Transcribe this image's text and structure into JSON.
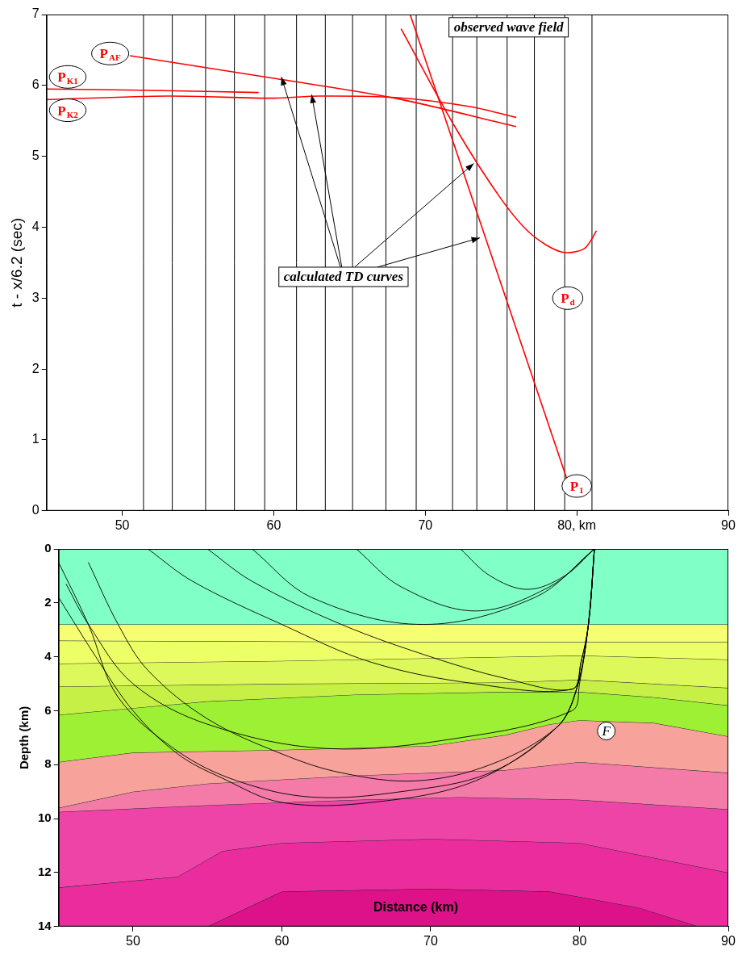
{
  "chart_data": [
    {
      "type": "line",
      "y_label": "t - x/6.2 (sec)",
      "xlim": [
        45,
        90
      ],
      "ylim": [
        0,
        7
      ],
      "xticks": [
        50,
        60,
        70,
        {
          "value": 80,
          "label": "80, km"
        },
        90
      ],
      "yticks": [
        0,
        1,
        2,
        3,
        4,
        5,
        6,
        7
      ],
      "grid": false,
      "traces": {
        "color": "#000000",
        "x": [
          51.4,
          53.3,
          55.5,
          57.4,
          59.4,
          61.5,
          63.4,
          65.2,
          67.4,
          69.4,
          71.8,
          73.4,
          75.4,
          77.2,
          79.2,
          81.0
        ]
      },
      "series": [
        {
          "name": "P",
          "subscript": "AF",
          "color": "#ff0000",
          "x": [
            50.5,
            60,
            68,
            76
          ],
          "values": [
            6.42,
            6.1,
            5.82,
            5.42
          ],
          "label_at": [
            49.2,
            6.45
          ]
        },
        {
          "name": "P",
          "subscript": "K1",
          "color": "#ff0000",
          "x": [
            45,
            52,
            59
          ],
          "values": [
            5.95,
            5.93,
            5.9
          ],
          "label_at": [
            46.4,
            6.12
          ]
        },
        {
          "name": "P",
          "subscript": "K2",
          "color": "#ff0000",
          "x": [
            45,
            53,
            60,
            63,
            68,
            73,
            76
          ],
          "values": [
            5.8,
            5.85,
            5.82,
            5.85,
            5.83,
            5.7,
            5.55
          ],
          "label_at": [
            46.4,
            5.65
          ]
        },
        {
          "name": "P",
          "subscript": "1",
          "color": "#ff0000",
          "x": [
            69,
            79.5
          ],
          "values": [
            7.0,
            0.35
          ],
          "label_at": [
            80.0,
            0.35
          ]
        },
        {
          "name": "P",
          "subscript": "d",
          "color": "#ff0000",
          "x": [
            68.4,
            72,
            75,
            77,
            79,
            80.5,
            81.3
          ],
          "values": [
            6.8,
            5.4,
            4.4,
            3.9,
            3.65,
            3.7,
            3.95
          ],
          "label_at": [
            79.4,
            3.0
          ]
        }
      ],
      "annotations": [
        {
          "text": "observed wave field",
          "x": 75.5,
          "y": 6.82,
          "marker": "box"
        },
        {
          "text": "calculated TD curves",
          "x": 64.6,
          "y": 3.3,
          "marker": "box",
          "arrows_to": [
            [
              62.5,
              5.87
            ],
            [
              60.5,
              6.12
            ],
            [
              73.2,
              4.9
            ],
            [
              73.6,
              3.85
            ]
          ]
        }
      ]
    },
    {
      "type": "line",
      "y_label": "Depth (km)",
      "xlim": [
        45,
        90
      ],
      "ylim": [
        14,
        0
      ],
      "xticks": [
        50,
        60,
        70,
        80,
        90
      ],
      "yticks": [
        0,
        2,
        4,
        6,
        8,
        10,
        12,
        14
      ],
      "grid": false,
      "interfaces": [
        [
          [
            45,
            2.8
          ],
          [
            90,
            2.8
          ]
        ],
        [
          [
            45,
            3.4
          ],
          [
            70,
            3.45
          ],
          [
            90,
            3.45
          ]
        ],
        [
          [
            45,
            4.25
          ],
          [
            60,
            4.15
          ],
          [
            75,
            4.0
          ],
          [
            80,
            3.95
          ],
          [
            90,
            4.1
          ]
        ],
        [
          [
            45,
            5.1
          ],
          [
            60,
            5.0
          ],
          [
            75,
            4.95
          ],
          [
            80,
            4.85
          ],
          [
            90,
            5.15
          ]
        ],
        [
          [
            45,
            6.15
          ],
          [
            50,
            5.9
          ],
          [
            55,
            5.65
          ],
          [
            65,
            5.4
          ],
          [
            75,
            5.3
          ],
          [
            80,
            5.3
          ],
          [
            85,
            5.5
          ],
          [
            90,
            5.8
          ]
        ],
        [
          [
            45,
            7.9
          ],
          [
            50,
            7.55
          ],
          [
            60,
            7.45
          ],
          [
            70,
            7.3
          ],
          [
            75,
            6.9
          ],
          [
            78,
            6.5
          ],
          [
            80,
            6.35
          ],
          [
            85,
            6.45
          ],
          [
            90,
            6.95
          ]
        ],
        [
          [
            45,
            9.6
          ],
          [
            50,
            9.0
          ],
          [
            55,
            8.7
          ],
          [
            65,
            8.4
          ],
          [
            75,
            8.2
          ],
          [
            80,
            7.9
          ],
          [
            90,
            8.3
          ]
        ],
        [
          [
            45,
            9.75
          ],
          [
            55,
            9.5
          ],
          [
            65,
            9.3
          ],
          [
            72,
            9.2
          ],
          [
            80,
            9.3
          ],
          [
            90,
            9.65
          ]
        ],
        [
          [
            45,
            12.55
          ],
          [
            53,
            12.15
          ],
          [
            56,
            11.2
          ],
          [
            60,
            10.9
          ],
          [
            70,
            10.75
          ],
          [
            80,
            10.9
          ],
          [
            90,
            12.0
          ]
        ],
        [
          [
            45,
            14
          ],
          [
            55,
            14
          ],
          [
            60,
            12.7
          ],
          [
            70,
            12.6
          ],
          [
            78,
            12.7
          ],
          [
            84,
            13.3
          ],
          [
            88,
            14
          ],
          [
            90,
            14
          ]
        ]
      ],
      "layer_colors": [
        "#80ffc6",
        "#f6ff74",
        "#ecff66",
        "#dcf85a",
        "#c6f046",
        "#9ef034",
        "#f7a29a",
        "#f47aa8",
        "#ee44a8",
        "#ea2c9c",
        "#de1288"
      ],
      "rays": {
        "color": "#000000",
        "paths": [
          [
            [
              81,
              0
            ],
            [
              79,
              1.0
            ],
            [
              76.5,
              1.5
            ],
            [
              74,
              1.0
            ],
            [
              72,
              0
            ]
          ],
          [
            [
              81,
              0
            ],
            [
              78,
              1.4
            ],
            [
              73,
              2.3
            ],
            [
              68,
              1.4
            ],
            [
              65,
              0
            ]
          ],
          [
            [
              81,
              0
            ],
            [
              77,
              1.8
            ],
            [
              69.5,
              2.8
            ],
            [
              62,
              1.8
            ],
            [
              58,
              0
            ]
          ],
          [
            [
              81,
              0
            ],
            [
              80.6,
              2.8
            ],
            [
              80.1,
              4.2
            ],
            [
              79.5,
              5.2
            ],
            [
              75,
              4.8
            ],
            [
              70,
              4.0
            ],
            [
              64,
              2.8
            ],
            [
              58,
              1.2
            ],
            [
              55,
              0
            ]
          ],
          [
            [
              81,
              0
            ],
            [
              80.6,
              2.8
            ],
            [
              80.1,
              4.2
            ],
            [
              79.5,
              5.2
            ],
            [
              73,
              5.0
            ],
            [
              66,
              4.2
            ],
            [
              60,
              2.8
            ],
            [
              54,
              1.2
            ],
            [
              51,
              0
            ]
          ],
          [
            [
              81,
              0
            ],
            [
              80.6,
              2.8
            ],
            [
              80,
              5.0
            ],
            [
              79.5,
              6.0
            ],
            [
              72,
              7.0
            ],
            [
              63,
              7.4
            ],
            [
              55,
              6.5
            ],
            [
              50,
              5.0
            ],
            [
              47,
              2.8
            ],
            [
              45.5,
              1.3
            ]
          ],
          [
            [
              81,
              0
            ],
            [
              80.6,
              2.8
            ],
            [
              79.8,
              5.2
            ],
            [
              78.5,
              6.6
            ],
            [
              74,
              8.0
            ],
            [
              69,
              8.6
            ],
            [
              64,
              8.3
            ],
            [
              60,
              7.6
            ],
            [
              55,
              6.3
            ],
            [
              51,
              4.5
            ],
            [
              49,
              2.8
            ],
            [
              47,
              0.5
            ]
          ],
          [
            [
              81,
              0
            ],
            [
              80.6,
              2.8
            ],
            [
              79.8,
              5.2
            ],
            [
              78.5,
              6.6
            ],
            [
              74,
              8.3
            ],
            [
              68,
              9.0
            ],
            [
              62,
              9.2
            ],
            [
              57,
              8.6
            ],
            [
              53,
              7.5
            ],
            [
              49,
              5.5
            ],
            [
              47,
              2.8
            ],
            [
              45,
              0.5
            ]
          ],
          [
            [
              81,
              0
            ],
            [
              80.6,
              2.8
            ],
            [
              79.8,
              5.2
            ],
            [
              78.5,
              6.6
            ],
            [
              73,
              8.6
            ],
            [
              66,
              9.4
            ],
            [
              60,
              9.4
            ],
            [
              56,
              8.5
            ],
            [
              53,
              7.6
            ],
            [
              50,
              6.0
            ],
            [
              47.5,
              4.0
            ],
            [
              45,
              1.8
            ]
          ]
        ]
      },
      "annotations": [
        {
          "text": "F",
          "x": 81.8,
          "y": 6.75,
          "marker": "circle"
        },
        {
          "text": "Distance (km)",
          "x": 69,
          "y": 13.3
        }
      ]
    }
  ]
}
